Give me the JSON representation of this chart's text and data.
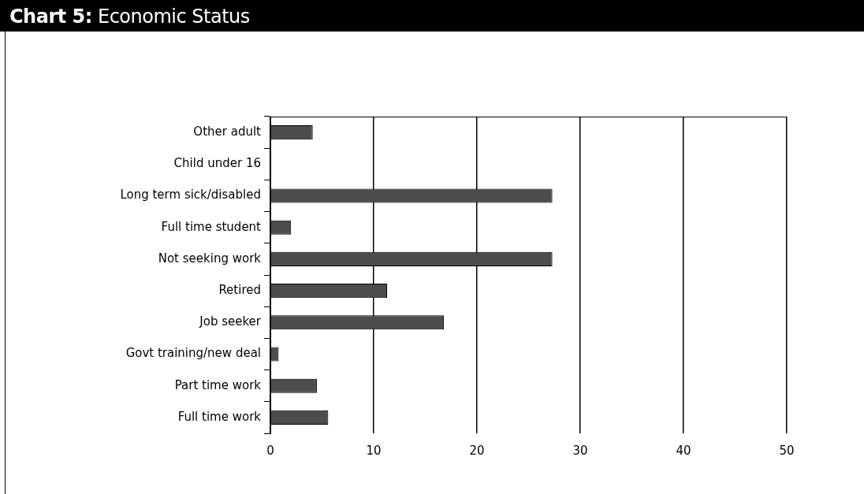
{
  "chart_data": {
    "type": "bar",
    "orientation": "horizontal",
    "title": "Chart 5: Economic Status",
    "categories": [
      "Other adult",
      "Child under 16",
      "Long term sick/disabled",
      "Full time student",
      "Not seeking work",
      "Retired",
      "Job seeker",
      "Govt training/new deal",
      "Part time work",
      "Full time work"
    ],
    "values": [
      4.1,
      0,
      27.3,
      2.0,
      27.3,
      11.3,
      16.8,
      0.8,
      4.5,
      5.6
    ],
    "color": "#4d4d4d",
    "xlim": [
      0,
      50
    ],
    "xticks": [
      0,
      10,
      20,
      30,
      40,
      50
    ],
    "grid": "x"
  }
}
